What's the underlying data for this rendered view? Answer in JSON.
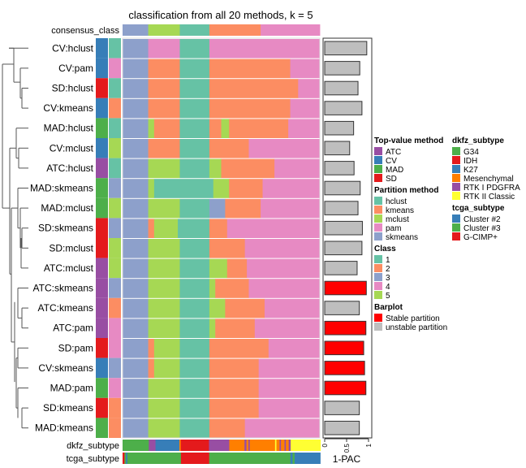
{
  "chart_data": {
    "type": "heatmap",
    "title": "classification from all 20 methods, k = 5",
    "top_annotation_label": "consensus_class",
    "class_colors": {
      "1": "#66C2A5",
      "2": "#FC8D62",
      "3": "#8DA0CB",
      "4": "#E78AC3",
      "5": "#A6D854"
    },
    "consensus_class": [
      [
        3,
        13
      ],
      [
        5,
        16
      ],
      [
        1,
        15
      ],
      [
        2,
        26
      ],
      [
        4,
        30
      ]
    ],
    "rows": [
      {
        "label": "CV:hclust",
        "method": "CV",
        "partition": "hclust",
        "pac": 0.96,
        "stable": false,
        "segments": [
          [
            3,
            13
          ],
          [
            4,
            16
          ],
          [
            1,
            15
          ],
          [
            4,
            56
          ]
        ]
      },
      {
        "label": "CV:pam",
        "method": "CV",
        "partition": "pam",
        "pac": 0.8,
        "stable": false,
        "segments": [
          [
            3,
            13
          ],
          [
            2,
            16
          ],
          [
            1,
            15
          ],
          [
            2,
            41
          ],
          [
            4,
            15
          ]
        ]
      },
      {
        "label": "SD:hclust",
        "method": "SD",
        "partition": "hclust",
        "pac": 0.76,
        "stable": false,
        "segments": [
          [
            3,
            13
          ],
          [
            2,
            16
          ],
          [
            1,
            15
          ],
          [
            2,
            45
          ],
          [
            4,
            11
          ]
        ]
      },
      {
        "label": "CV:kmeans",
        "method": "CV",
        "partition": "kmeans",
        "pac": 0.85,
        "stable": false,
        "segments": [
          [
            3,
            13
          ],
          [
            2,
            16
          ],
          [
            1,
            15
          ],
          [
            2,
            41
          ],
          [
            4,
            15
          ]
        ]
      },
      {
        "label": "MAD:hclust",
        "method": "MAD",
        "partition": "hclust",
        "pac": 0.66,
        "stable": false,
        "segments": [
          [
            3,
            13
          ],
          [
            5,
            3
          ],
          [
            2,
            13
          ],
          [
            1,
            15
          ],
          [
            2,
            6
          ],
          [
            5,
            4
          ],
          [
            2,
            30
          ],
          [
            4,
            16
          ]
        ]
      },
      {
        "label": "CV:mclust",
        "method": "CV",
        "partition": "mclust",
        "pac": 0.57,
        "stable": false,
        "segments": [
          [
            3,
            13
          ],
          [
            2,
            16
          ],
          [
            1,
            15
          ],
          [
            2,
            20
          ],
          [
            4,
            36
          ]
        ]
      },
      {
        "label": "ATC:hclust",
        "method": "ATC",
        "partition": "hclust",
        "pac": 0.67,
        "stable": false,
        "segments": [
          [
            3,
            13
          ],
          [
            5,
            16
          ],
          [
            1,
            15
          ],
          [
            5,
            6
          ],
          [
            2,
            27
          ],
          [
            4,
            23
          ]
        ]
      },
      {
        "label": "MAD:skmeans",
        "method": "MAD",
        "partition": "skmeans",
        "pac": 0.81,
        "stable": false,
        "segments": [
          [
            3,
            13
          ],
          [
            5,
            3
          ],
          [
            1,
            30
          ],
          [
            5,
            8
          ],
          [
            2,
            17
          ],
          [
            4,
            29
          ]
        ]
      },
      {
        "label": "MAD:mclust",
        "method": "MAD",
        "partition": "mclust",
        "pac": 0.76,
        "stable": false,
        "segments": [
          [
            3,
            13
          ],
          [
            5,
            16
          ],
          [
            1,
            15
          ],
          [
            3,
            8
          ],
          [
            2,
            18
          ],
          [
            4,
            30
          ]
        ]
      },
      {
        "label": "SD:skmeans",
        "method": "SD",
        "partition": "skmeans",
        "pac": 0.86,
        "stable": false,
        "segments": [
          [
            3,
            13
          ],
          [
            2,
            3
          ],
          [
            5,
            12
          ],
          [
            1,
            16
          ],
          [
            2,
            9
          ],
          [
            4,
            47
          ]
        ]
      },
      {
        "label": "SD:mclust",
        "method": "SD",
        "partition": "mclust",
        "pac": 0.85,
        "stable": false,
        "segments": [
          [
            3,
            13
          ],
          [
            5,
            16
          ],
          [
            1,
            15
          ],
          [
            2,
            18
          ],
          [
            4,
            38
          ]
        ]
      },
      {
        "label": "ATC:mclust",
        "method": "ATC",
        "partition": "mclust",
        "pac": 0.74,
        "stable": false,
        "segments": [
          [
            3,
            13
          ],
          [
            5,
            16
          ],
          [
            1,
            15
          ],
          [
            5,
            9
          ],
          [
            2,
            10
          ],
          [
            4,
            37
          ]
        ]
      },
      {
        "label": "ATC:skmeans",
        "method": "ATC",
        "partition": "skmeans",
        "pac": 0.95,
        "stable": true,
        "segments": [
          [
            3,
            13
          ],
          [
            5,
            16
          ],
          [
            1,
            15
          ],
          [
            5,
            3
          ],
          [
            2,
            17
          ],
          [
            4,
            36
          ]
        ]
      },
      {
        "label": "ATC:kmeans",
        "method": "ATC",
        "partition": "kmeans",
        "pac": 0.79,
        "stable": false,
        "segments": [
          [
            3,
            13
          ],
          [
            5,
            16
          ],
          [
            1,
            15
          ],
          [
            5,
            8
          ],
          [
            2,
            20
          ],
          [
            4,
            28
          ]
        ]
      },
      {
        "label": "ATC:pam",
        "method": "ATC",
        "partition": "pam",
        "pac": 0.94,
        "stable": true,
        "segments": [
          [
            3,
            13
          ],
          [
            5,
            16
          ],
          [
            1,
            15
          ],
          [
            5,
            3
          ],
          [
            2,
            20
          ],
          [
            4,
            33
          ]
        ]
      },
      {
        "label": "SD:pam",
        "method": "SD",
        "partition": "pam",
        "pac": 0.89,
        "stable": true,
        "segments": [
          [
            3,
            13
          ],
          [
            2,
            3
          ],
          [
            5,
            13
          ],
          [
            1,
            15
          ],
          [
            2,
            30
          ],
          [
            4,
            26
          ]
        ]
      },
      {
        "label": "CV:skmeans",
        "method": "CV",
        "partition": "skmeans",
        "pac": 0.91,
        "stable": true,
        "segments": [
          [
            3,
            13
          ],
          [
            2,
            3
          ],
          [
            5,
            13
          ],
          [
            1,
            15
          ],
          [
            2,
            25
          ],
          [
            4,
            31
          ]
        ]
      },
      {
        "label": "MAD:pam",
        "method": "MAD",
        "partition": "pam",
        "pac": 0.94,
        "stable": true,
        "segments": [
          [
            3,
            13
          ],
          [
            5,
            16
          ],
          [
            1,
            15
          ],
          [
            2,
            25
          ],
          [
            4,
            31
          ]
        ]
      },
      {
        "label": "SD:kmeans",
        "method": "SD",
        "partition": "kmeans",
        "pac": 0.79,
        "stable": false,
        "segments": [
          [
            3,
            13
          ],
          [
            5,
            16
          ],
          [
            1,
            15
          ],
          [
            2,
            25
          ],
          [
            4,
            31
          ]
        ]
      },
      {
        "label": "MAD:kmeans",
        "method": "MAD",
        "partition": "kmeans",
        "pac": 0.79,
        "stable": false,
        "segments": [
          [
            3,
            13
          ],
          [
            5,
            16
          ],
          [
            1,
            15
          ],
          [
            2,
            18
          ],
          [
            4,
            38
          ]
        ]
      }
    ],
    "barplot": {
      "xlabel": "1-PAC",
      "ticks": [
        "0",
        "0.5",
        "1"
      ],
      "xlim": [
        0,
        1
      ],
      "stable_color": "#FF0000",
      "unstable_color": "#BEBEBE"
    },
    "bottom_annotations": [
      {
        "label": "dkfz_subtype",
        "segments": [
          [
            "G34",
            13.3
          ],
          [
            "RTK I PDGFRA",
            3.4
          ],
          [
            "K27",
            12.1
          ],
          [
            "Mesenchymal",
            0.7
          ],
          [
            "IDH",
            14.3
          ],
          [
            "RTK I PDGFRA",
            10.3
          ],
          [
            "Mesenchymal",
            7.7
          ],
          [
            "RTK I PDGFRA",
            1.0
          ],
          [
            "Mesenchymal",
            1.0
          ],
          [
            "RTK I PDGFRA",
            0.7
          ],
          [
            "Mesenchymal",
            12.8
          ],
          [
            "RTK II Classic",
            0.7
          ],
          [
            "Mesenchymal",
            1.6
          ],
          [
            "RTK I PDGFRA",
            0.7
          ],
          [
            "Mesenchymal",
            1.8
          ],
          [
            "RTK I PDGFRA",
            0.7
          ],
          [
            "Mesenchymal",
            1.4
          ],
          [
            "RTK I PDGFRA",
            1.0
          ],
          [
            "RTK II Classic",
            15.1
          ]
        ]
      },
      {
        "label": "tcga_subtype",
        "segments": [
          [
            "G-CIMP+",
            1.0
          ],
          [
            "Cluster #3",
            0.7
          ],
          [
            "Cluster #2",
            0.7
          ],
          [
            "Cluster #3",
            27.2
          ],
          [
            "G-CIMP+",
            14.3
          ],
          [
            "Cluster #3",
            41.2
          ],
          [
            "Cluster #2",
            1.1
          ],
          [
            "Cluster #3",
            1.0
          ],
          [
            "Cluster #2",
            13.0
          ]
        ]
      }
    ]
  },
  "legends": [
    {
      "title": "Top-value method",
      "items": [
        {
          "label": "ATC",
          "color": "#984EA3"
        },
        {
          "label": "CV",
          "color": "#377EB8"
        },
        {
          "label": "MAD",
          "color": "#4DAF4A"
        },
        {
          "label": "SD",
          "color": "#E41A1C"
        }
      ]
    },
    {
      "title": "Partition method",
      "items": [
        {
          "label": "hclust",
          "color": "#66C2A5"
        },
        {
          "label": "kmeans",
          "color": "#FC8D62"
        },
        {
          "label": "mclust",
          "color": "#A6D854"
        },
        {
          "label": "pam",
          "color": "#E78AC3"
        },
        {
          "label": "skmeans",
          "color": "#8DA0CB"
        }
      ]
    },
    {
      "title": "Class",
      "items": [
        {
          "label": "1",
          "color": "#66C2A5"
        },
        {
          "label": "2",
          "color": "#FC8D62"
        },
        {
          "label": "3",
          "color": "#8DA0CB"
        },
        {
          "label": "4",
          "color": "#E78AC3"
        },
        {
          "label": "5",
          "color": "#A6D854"
        }
      ]
    },
    {
      "title": "Barplot",
      "items": [
        {
          "label": "Stable partition",
          "color": "#FF0000"
        },
        {
          "label": "unstable partition",
          "color": "#BEBEBE"
        }
      ]
    },
    {
      "title": "dkfz_subtype",
      "items": [
        {
          "label": "G34",
          "color": "#4DAF4A"
        },
        {
          "label": "IDH",
          "color": "#E41A1C"
        },
        {
          "label": "K27",
          "color": "#377EB8"
        },
        {
          "label": "Mesenchymal",
          "color": "#FF7F00"
        },
        {
          "label": "RTK I PDGFRA",
          "color": "#984EA3"
        },
        {
          "label": "RTK II Classic",
          "color": "#FFFF33"
        }
      ]
    },
    {
      "title": "tcga_subtype",
      "items": [
        {
          "label": "Cluster #2",
          "color": "#377EB8"
        },
        {
          "label": "Cluster #3",
          "color": "#4DAF4A"
        },
        {
          "label": "G-CIMP+",
          "color": "#E41A1C"
        }
      ]
    }
  ]
}
